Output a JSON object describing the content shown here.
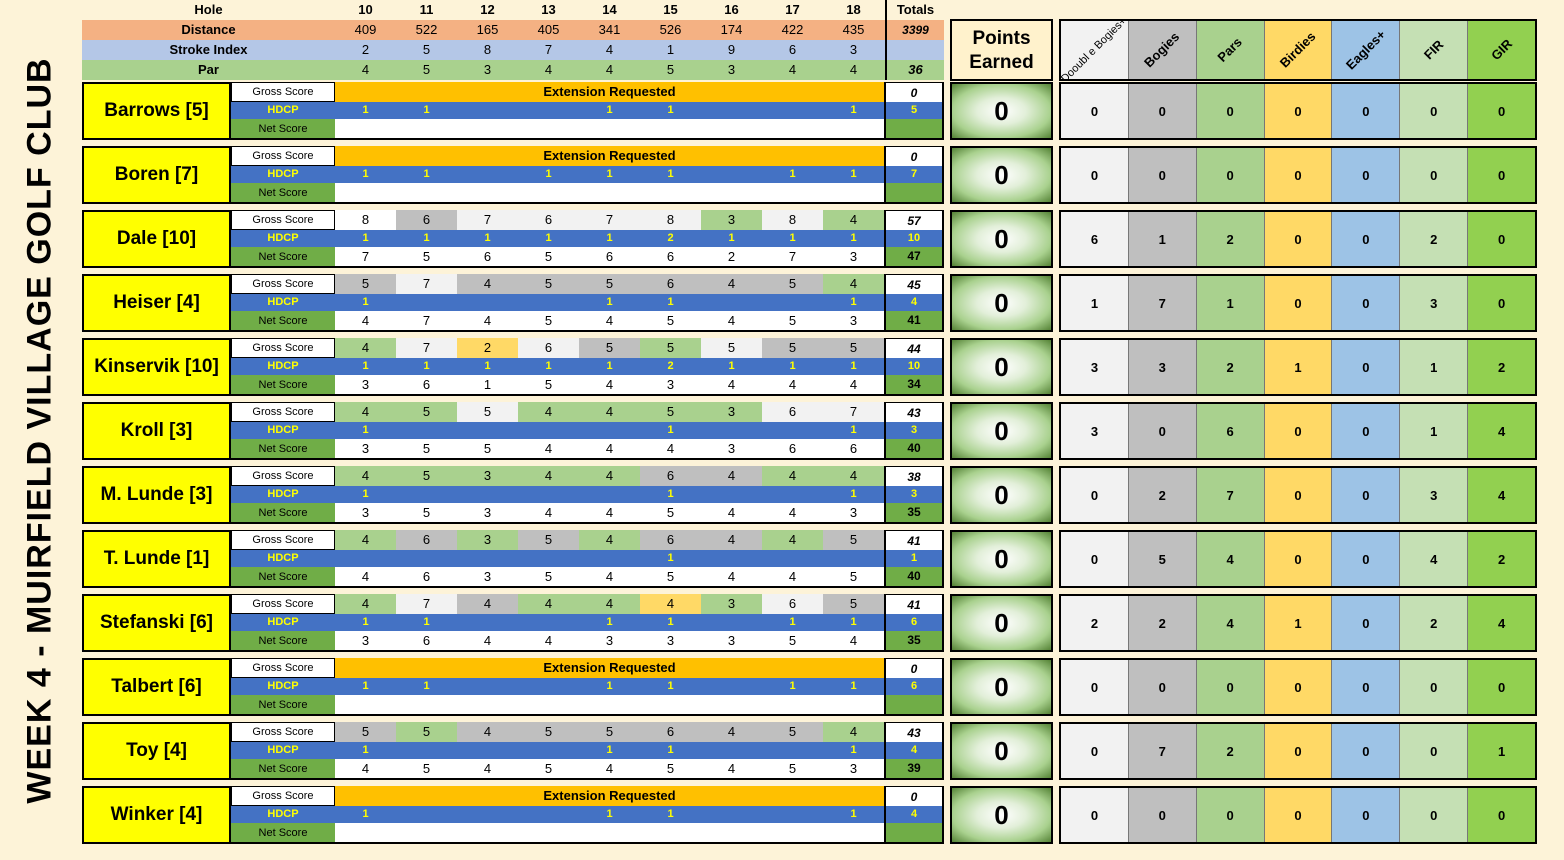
{
  "title": "WEEK 4 - MUIRFIELD VILLAGE GOLF CLUB",
  "header": {
    "hole_label": "Hole",
    "distance_label": "Distance",
    "stroke_index_label": "Stroke Index",
    "par_label": "Par",
    "totals_label": "Totals",
    "holes": [
      "10",
      "11",
      "12",
      "13",
      "14",
      "15",
      "16",
      "17",
      "18"
    ],
    "distances": [
      "409",
      "522",
      "165",
      "405",
      "341",
      "526",
      "174",
      "422",
      "435"
    ],
    "distance_total": "3399",
    "stroke_index": [
      "2",
      "5",
      "8",
      "7",
      "4",
      "1",
      "9",
      "6",
      "3"
    ],
    "stroke_index_total": "",
    "pars": [
      "4",
      "5",
      "3",
      "4",
      "4",
      "5",
      "3",
      "4",
      "4"
    ],
    "par_total": "36"
  },
  "points_header": "Points Earned",
  "category_headers": [
    "Dooubl e Bogies+",
    "Bogies",
    "Pars",
    "Birdies",
    "Eagles+",
    "FIR",
    "GIR"
  ],
  "row_labels": {
    "gross": "Gross Score",
    "hdcp": "HDCP",
    "net": "Net Score"
  },
  "extension_text": "Extension Requested",
  "players": [
    {
      "name": "Barrows [5]",
      "extension": true,
      "gross": [],
      "gross_total": "0",
      "hdcp": [
        "1",
        "1",
        "",
        "",
        "1",
        "1",
        "",
        "",
        "1"
      ],
      "hdcp_total": "5",
      "net": [],
      "net_total": "",
      "points": "0",
      "cats": [
        "0",
        "0",
        "0",
        "0",
        "0",
        "0",
        "0"
      ]
    },
    {
      "name": "Boren [7]",
      "extension": true,
      "gross": [],
      "gross_total": "0",
      "hdcp": [
        "1",
        "1",
        "",
        "1",
        "1",
        "1",
        "",
        "1",
        "1"
      ],
      "hdcp_total": "7",
      "net": [],
      "net_total": "",
      "points": "0",
      "cats": [
        "0",
        "0",
        "0",
        "0",
        "0",
        "0",
        "0"
      ]
    },
    {
      "name": "Dale [10]",
      "extension": false,
      "gross": [
        "8",
        "6",
        "7",
        "6",
        "7",
        "8",
        "3",
        "8",
        "4"
      ],
      "gross_class": [
        "wht",
        "bog",
        "dbl",
        "dbl",
        "dbl",
        "dbl",
        "par",
        "dbl",
        "par"
      ],
      "gross_total": "57",
      "hdcp": [
        "1",
        "1",
        "1",
        "1",
        "1",
        "2",
        "1",
        "1",
        "1"
      ],
      "hdcp_total": "10",
      "net": [
        "7",
        "5",
        "6",
        "5",
        "6",
        "6",
        "2",
        "7",
        "3"
      ],
      "net_total": "47",
      "points": "0",
      "cats": [
        "6",
        "1",
        "2",
        "0",
        "0",
        "2",
        "0"
      ]
    },
    {
      "name": "Heiser [4]",
      "extension": false,
      "gross": [
        "5",
        "7",
        "4",
        "5",
        "5",
        "6",
        "4",
        "5",
        "4"
      ],
      "gross_class": [
        "bog",
        "dbl",
        "bog",
        "bog",
        "bog",
        "bog",
        "bog",
        "bog",
        "par"
      ],
      "gross_total": "45",
      "hdcp": [
        "1",
        "",
        "",
        "",
        "1",
        "1",
        "",
        "",
        "1"
      ],
      "hdcp_total": "4",
      "net": [
        "4",
        "7",
        "4",
        "5",
        "4",
        "5",
        "4",
        "5",
        "3"
      ],
      "net_total": "41",
      "points": "0",
      "cats": [
        "1",
        "7",
        "1",
        "0",
        "0",
        "3",
        "0"
      ]
    },
    {
      "name": "Kinservik [10]",
      "extension": false,
      "gross": [
        "4",
        "7",
        "2",
        "6",
        "5",
        "5",
        "5",
        "5",
        "5"
      ],
      "gross_class": [
        "par",
        "dbl",
        "bir",
        "dbl",
        "bog",
        "par",
        "dbl",
        "bog",
        "bog"
      ],
      "gross_total": "44",
      "hdcp": [
        "1",
        "1",
        "1",
        "1",
        "1",
        "2",
        "1",
        "1",
        "1"
      ],
      "hdcp_total": "10",
      "net": [
        "3",
        "6",
        "1",
        "5",
        "4",
        "3",
        "4",
        "4",
        "4"
      ],
      "net_total": "34",
      "points": "0",
      "cats": [
        "3",
        "3",
        "2",
        "1",
        "0",
        "1",
        "2"
      ]
    },
    {
      "name": "Kroll [3]",
      "extension": false,
      "gross": [
        "4",
        "5",
        "5",
        "4",
        "4",
        "5",
        "3",
        "6",
        "7"
      ],
      "gross_class": [
        "par",
        "par",
        "dbl",
        "par",
        "par",
        "par",
        "par",
        "dbl",
        "dbl"
      ],
      "gross_total": "43",
      "hdcp": [
        "1",
        "",
        "",
        "",
        "",
        "1",
        "",
        "",
        "1"
      ],
      "hdcp_total": "3",
      "net": [
        "3",
        "5",
        "5",
        "4",
        "4",
        "4",
        "3",
        "6",
        "6"
      ],
      "net_total": "40",
      "points": "0",
      "cats": [
        "3",
        "0",
        "6",
        "0",
        "0",
        "1",
        "4"
      ]
    },
    {
      "name": "M. Lunde [3]",
      "extension": false,
      "gross": [
        "4",
        "5",
        "3",
        "4",
        "4",
        "6",
        "4",
        "4",
        "4"
      ],
      "gross_class": [
        "par",
        "par",
        "par",
        "par",
        "par",
        "bog",
        "bog",
        "par",
        "par"
      ],
      "gross_total": "38",
      "hdcp": [
        "1",
        "",
        "",
        "",
        "",
        "1",
        "",
        "",
        "1"
      ],
      "hdcp_total": "3",
      "net": [
        "3",
        "5",
        "3",
        "4",
        "4",
        "5",
        "4",
        "4",
        "3"
      ],
      "net_total": "35",
      "points": "0",
      "cats": [
        "0",
        "2",
        "7",
        "0",
        "0",
        "3",
        "4"
      ]
    },
    {
      "name": "T. Lunde [1]",
      "extension": false,
      "gross": [
        "4",
        "6",
        "3",
        "5",
        "4",
        "6",
        "4",
        "4",
        "5"
      ],
      "gross_class": [
        "par",
        "bog",
        "par",
        "bog",
        "par",
        "bog",
        "bog",
        "par",
        "bog"
      ],
      "gross_total": "41",
      "hdcp": [
        "",
        "",
        "",
        "",
        "",
        "1",
        "",
        "",
        ""
      ],
      "hdcp_total": "1",
      "net": [
        "4",
        "6",
        "3",
        "5",
        "4",
        "5",
        "4",
        "4",
        "5"
      ],
      "net_total": "40",
      "points": "0",
      "cats": [
        "0",
        "5",
        "4",
        "0",
        "0",
        "4",
        "2"
      ]
    },
    {
      "name": "Stefanski [6]",
      "extension": false,
      "gross": [
        "4",
        "7",
        "4",
        "4",
        "4",
        "4",
        "3",
        "6",
        "5"
      ],
      "gross_class": [
        "par",
        "dbl",
        "bog",
        "par",
        "par",
        "bir",
        "par",
        "dbl",
        "bog"
      ],
      "gross_total": "41",
      "hdcp": [
        "1",
        "1",
        "",
        "",
        "1",
        "1",
        "",
        "1",
        "1"
      ],
      "hdcp_total": "6",
      "net": [
        "3",
        "6",
        "4",
        "4",
        "3",
        "3",
        "3",
        "5",
        "4"
      ],
      "net_total": "35",
      "points": "0",
      "cats": [
        "2",
        "2",
        "4",
        "1",
        "0",
        "2",
        "4"
      ]
    },
    {
      "name": "Talbert [6]",
      "extension": true,
      "gross": [],
      "gross_total": "0",
      "hdcp": [
        "1",
        "1",
        "",
        "",
        "1",
        "1",
        "",
        "1",
        "1"
      ],
      "hdcp_total": "6",
      "net": [],
      "net_total": "",
      "points": "0",
      "cats": [
        "0",
        "0",
        "0",
        "0",
        "0",
        "0",
        "0"
      ]
    },
    {
      "name": "Toy [4]",
      "extension": false,
      "gross": [
        "5",
        "5",
        "4",
        "5",
        "5",
        "6",
        "4",
        "5",
        "4"
      ],
      "gross_class": [
        "bog",
        "par",
        "bog",
        "bog",
        "bog",
        "bog",
        "bog",
        "bog",
        "par"
      ],
      "gross_total": "43",
      "hdcp": [
        "1",
        "",
        "",
        "",
        "1",
        "1",
        "",
        "",
        "1"
      ],
      "hdcp_total": "4",
      "net": [
        "4",
        "5",
        "4",
        "5",
        "4",
        "5",
        "4",
        "5",
        "3"
      ],
      "net_total": "39",
      "points": "0",
      "cats": [
        "0",
        "7",
        "2",
        "0",
        "0",
        "0",
        "1"
      ]
    },
    {
      "name": "Winker [4]",
      "extension": true,
      "gross": [],
      "gross_total": "0",
      "hdcp": [
        "1",
        "",
        "",
        "",
        "1",
        "1",
        "",
        "",
        "1"
      ],
      "hdcp_total": "4",
      "net": [],
      "net_total": "",
      "points": "0",
      "cats": [
        "0",
        "0",
        "0",
        "0",
        "0",
        "0",
        "0"
      ]
    }
  ]
}
